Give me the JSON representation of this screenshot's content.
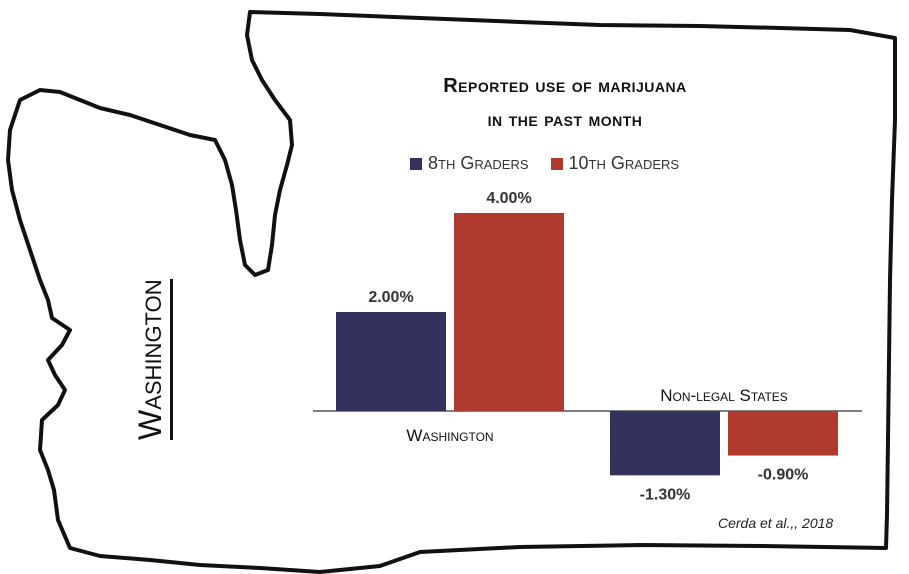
{
  "state_label": "Washington",
  "citation": "Cerda et al.,, 2018",
  "chart_data": {
    "type": "bar",
    "title_line1": "Reported use of marijuana",
    "title_line2": "in the past month",
    "categories": [
      "Washington",
      "Non-legal States"
    ],
    "series": [
      {
        "name": "8th Graders",
        "values": [
          2.0,
          -1.3
        ],
        "labels": [
          "2.00%",
          "-1.30%"
        ],
        "color": "#33325c"
      },
      {
        "name": "10th Graders",
        "values": [
          4.0,
          -0.9
        ],
        "labels": [
          "4.00%",
          "-0.90%"
        ],
        "color": "#b03a2e"
      }
    ],
    "ylim": [
      -1.6,
      4.0
    ],
    "grid": false,
    "legend_position": "top"
  }
}
